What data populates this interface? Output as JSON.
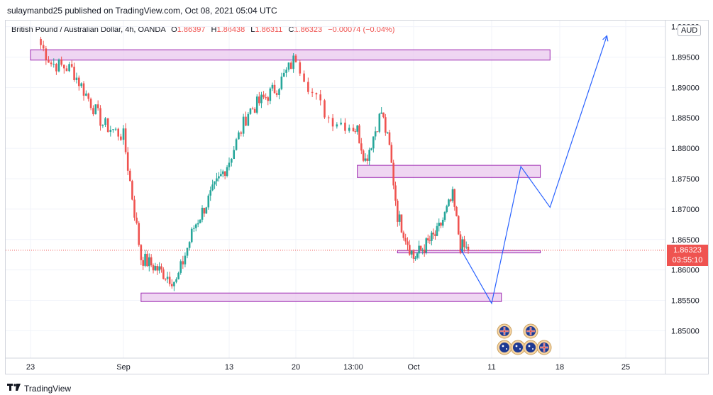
{
  "header": {
    "published": "sulaymanbd25 published on TradingView.com, Oct 08, 2021 05:04 UTC",
    "symbol": "British Pound / Australian Dollar, 4h, OANDA",
    "open_label": "O",
    "open": "1.86397",
    "high_label": "H",
    "high": "1.86438",
    "low_label": "L",
    "low": "1.86311",
    "close_label": "C",
    "close": "1.86323",
    "change": "−0.00074 (−0.04%)",
    "currency": "AUD"
  },
  "price_tag": {
    "price": "1.86323",
    "countdown": "03:55:10"
  },
  "footer": {
    "brand": "TradingView",
    "logo_icon": "tradingview-logo-icon"
  },
  "colors": {
    "up": "#26a69a",
    "down": "#ef5350",
    "zone_fill": "#e9c8ee",
    "zone_stroke": "#9c27b0",
    "projection": "#2962ff",
    "grid": "#f0f3fa"
  },
  "chart_data": {
    "type": "candlestick",
    "y_ticks": [
      "1.90000",
      "1.89500",
      "1.89000",
      "1.88500",
      "1.88000",
      "1.87500",
      "1.87000",
      "1.86500",
      "1.86000",
      "1.85500",
      "1.85000"
    ],
    "x_ticks": [
      "23",
      "Sep",
      "13",
      "20",
      "13:00",
      "Oct",
      "11",
      "18",
      "25"
    ],
    "ylim": [
      1.8455,
      1.901
    ],
    "grid": true,
    "last_price": 1.86323,
    "zones": [
      {
        "x_from": "Aug 23",
        "x_to": "Oct 17",
        "y_low": 1.8945,
        "y_high": 1.8962
      },
      {
        "x_from": "Sep 24",
        "x_to": "Oct 16",
        "y_low": 1.8752,
        "y_high": 1.8772
      },
      {
        "x_from": "Sep 29",
        "x_to": "Oct 16",
        "y_low": 1.8628,
        "y_high": 1.8632
      },
      {
        "x_from": "Sep 3",
        "x_to": "Oct 12",
        "y_low": 1.8548,
        "y_high": 1.8562
      }
    ],
    "projection": [
      {
        "x": "Oct 7",
        "y": 1.8635
      },
      {
        "x": "Oct 11",
        "y": 1.8545
      },
      {
        "x": "Oct 14",
        "y": 1.877
      },
      {
        "x": "Oct 17",
        "y": 1.8703
      },
      {
        "x": "Oct 23",
        "y": 1.8985
      }
    ],
    "anchors": [
      {
        "x": "Aug 24",
        "close": 1.897
      },
      {
        "x": "Aug 25",
        "close": 1.894
      },
      {
        "x": "Aug 27",
        "close": 1.893
      },
      {
        "x": "Aug 30",
        "close": 1.884
      },
      {
        "x": "Sep 1",
        "close": 1.882
      },
      {
        "x": "Sep 3",
        "close": 1.862
      },
      {
        "x": "Sep 6",
        "close": 1.859
      },
      {
        "x": "Sep 7",
        "close": 1.858
      },
      {
        "x": "Sep 9",
        "close": 1.867
      },
      {
        "x": "Sep 13",
        "close": 1.878
      },
      {
        "x": "Sep 15",
        "close": 1.886
      },
      {
        "x": "Sep 18",
        "close": 1.89
      },
      {
        "x": "Sep 20",
        "close": 1.895
      },
      {
        "x": "Sep 21",
        "close": 1.889
      },
      {
        "x": "Sep 22",
        "close": 1.885
      },
      {
        "x": "Sep 24",
        "close": 1.883
      },
      {
        "x": "Sep 25",
        "close": 1.878
      },
      {
        "x": "Sep 27",
        "close": 1.886
      },
      {
        "x": "Sep 28",
        "close": 1.88
      },
      {
        "x": "Sep 29",
        "close": 1.869
      },
      {
        "x": "Oct 1",
        "close": 1.862
      },
      {
        "x": "Oct 4",
        "close": 1.866
      },
      {
        "x": "Oct 5",
        "close": 1.869
      },
      {
        "x": "Oct 6",
        "close": 1.872
      },
      {
        "x": "Oct 7",
        "close": 1.864
      },
      {
        "x": "Oct 8",
        "close": 1.86323
      }
    ],
    "event_icons": [
      "uk-flag-icon",
      "uk-flag-icon",
      "au-flag-icon",
      "au-flag-icon",
      "au-flag-icon",
      "uk-flag-icon"
    ]
  }
}
